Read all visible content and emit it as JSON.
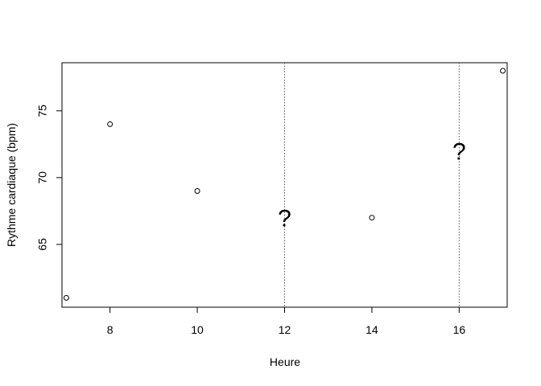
{
  "chart_data": {
    "type": "scatter",
    "title": "",
    "xlabel": "Heure",
    "ylabel": "Rythme cardiaque (bpm)",
    "xlim": [
      6.9,
      17.1
    ],
    "ylim": [
      60.3,
      78.6
    ],
    "x_ticks": [
      "8",
      "10",
      "12",
      "14",
      "16"
    ],
    "y_ticks": [
      "65",
      "70",
      "75"
    ],
    "grid": false,
    "points": [
      {
        "x": 7,
        "y": 61
      },
      {
        "x": 8,
        "y": 74
      },
      {
        "x": 10,
        "y": 69
      },
      {
        "x": 14,
        "y": 67
      },
      {
        "x": 17,
        "y": 78
      }
    ],
    "vertical_lines": [
      {
        "x": 12,
        "style": "dotted",
        "color": "#555555"
      },
      {
        "x": 16,
        "style": "dotted",
        "color": "#555555"
      }
    ],
    "annotations": [
      {
        "x": 12,
        "y": 67,
        "text": "?"
      },
      {
        "x": 16,
        "y": 72,
        "text": "?"
      }
    ]
  }
}
